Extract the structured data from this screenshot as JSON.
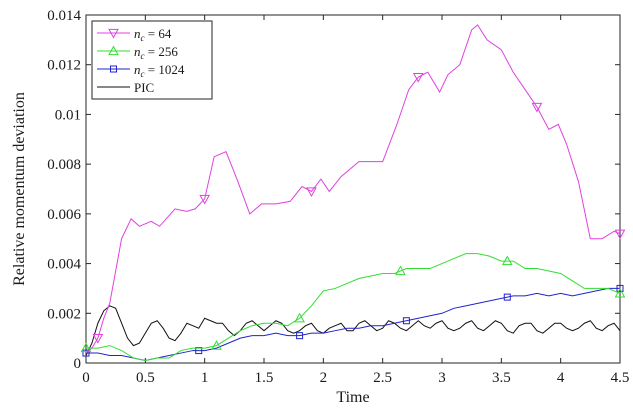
{
  "chart_data": {
    "type": "line",
    "title": "",
    "xlabel": "Time",
    "ylabel": "Relative momentum deviation",
    "xlim": [
      0,
      4.5
    ],
    "ylim": [
      0,
      0.014
    ],
    "grid": false,
    "legend_placement": "top-left",
    "x_ticks": [
      0,
      0.5,
      1,
      1.5,
      2,
      2.5,
      3,
      3.5,
      4,
      4.5
    ],
    "x_tick_labels": [
      "0",
      "0.5",
      "1",
      "1.5",
      "2",
      "2.5",
      "3",
      "3.5",
      "4",
      "4.5"
    ],
    "y_ticks": [
      0,
      0.002,
      0.004,
      0.006,
      0.008,
      0.01,
      0.012,
      0.014
    ],
    "y_tick_labels": [
      "0",
      "0.002",
      "0.004",
      "0.006",
      "0.008",
      "0.01",
      "0.012",
      "0.014"
    ],
    "series": [
      {
        "name": "n_c = 64",
        "legend_label": "n_c = 64",
        "legend_base": "n",
        "legend_sub": "c",
        "legend_rest": " = 64",
        "color": "#e040e0",
        "marker": "triangle-down",
        "marker_x": [
          0.1,
          1.0,
          1.9,
          2.8,
          3.8,
          4.5
        ],
        "points": [
          [
            0.0,
            0.0004
          ],
          [
            0.05,
            0.0006
          ],
          [
            0.1,
            0.001
          ],
          [
            0.15,
            0.0018
          ],
          [
            0.2,
            0.0024
          ],
          [
            0.3,
            0.005
          ],
          [
            0.38,
            0.0058
          ],
          [
            0.45,
            0.0055
          ],
          [
            0.55,
            0.0057
          ],
          [
            0.62,
            0.0055
          ],
          [
            0.75,
            0.0062
          ],
          [
            0.85,
            0.0061
          ],
          [
            0.92,
            0.0062
          ],
          [
            1.0,
            0.0066
          ],
          [
            1.08,
            0.0083
          ],
          [
            1.18,
            0.0085
          ],
          [
            1.28,
            0.0073
          ],
          [
            1.38,
            0.006
          ],
          [
            1.48,
            0.0064
          ],
          [
            1.6,
            0.0064
          ],
          [
            1.72,
            0.0065
          ],
          [
            1.82,
            0.0071
          ],
          [
            1.9,
            0.0069
          ],
          [
            1.98,
            0.0074
          ],
          [
            2.05,
            0.0069
          ],
          [
            2.15,
            0.0075
          ],
          [
            2.3,
            0.0081
          ],
          [
            2.5,
            0.0081
          ],
          [
            2.62,
            0.0096
          ],
          [
            2.72,
            0.011
          ],
          [
            2.8,
            0.0115
          ],
          [
            2.88,
            0.0117
          ],
          [
            2.98,
            0.0109
          ],
          [
            3.05,
            0.0116
          ],
          [
            3.15,
            0.012
          ],
          [
            3.25,
            0.0134
          ],
          [
            3.3,
            0.0136
          ],
          [
            3.38,
            0.013
          ],
          [
            3.5,
            0.0126
          ],
          [
            3.6,
            0.0117
          ],
          [
            3.7,
            0.011
          ],
          [
            3.8,
            0.0103
          ],
          [
            3.9,
            0.0094
          ],
          [
            3.98,
            0.0096
          ],
          [
            4.05,
            0.0088
          ],
          [
            4.15,
            0.0073
          ],
          [
            4.25,
            0.005
          ],
          [
            4.35,
            0.005
          ],
          [
            4.45,
            0.0053
          ],
          [
            4.5,
            0.0052
          ]
        ]
      },
      {
        "name": "n_c = 256",
        "legend_label": "n_c = 256",
        "legend_base": "n",
        "legend_sub": "c",
        "legend_rest": " = 256",
        "color": "#33dd33",
        "marker": "triangle-up",
        "marker_x": [
          0.0,
          1.1,
          1.8,
          2.65,
          3.55,
          4.5
        ],
        "points": [
          [
            0.0,
            0.0006
          ],
          [
            0.1,
            0.0006
          ],
          [
            0.2,
            0.0007
          ],
          [
            0.3,
            0.0005
          ],
          [
            0.4,
            0.0002
          ],
          [
            0.5,
            0.0001
          ],
          [
            0.6,
            0.0002
          ],
          [
            0.7,
            0.0002
          ],
          [
            0.8,
            0.0005
          ],
          [
            0.9,
            0.0006
          ],
          [
            1.0,
            0.0006
          ],
          [
            1.1,
            0.0007
          ],
          [
            1.2,
            0.001
          ],
          [
            1.3,
            0.0013
          ],
          [
            1.4,
            0.0015
          ],
          [
            1.5,
            0.0016
          ],
          [
            1.6,
            0.0016
          ],
          [
            1.7,
            0.0015
          ],
          [
            1.8,
            0.0018
          ],
          [
            1.9,
            0.0023
          ],
          [
            2.0,
            0.0029
          ],
          [
            2.1,
            0.003
          ],
          [
            2.2,
            0.0032
          ],
          [
            2.3,
            0.0034
          ],
          [
            2.4,
            0.0035
          ],
          [
            2.5,
            0.0036
          ],
          [
            2.6,
            0.0036
          ],
          [
            2.7,
            0.0038
          ],
          [
            2.8,
            0.0038
          ],
          [
            2.9,
            0.0038
          ],
          [
            3.0,
            0.004
          ],
          [
            3.1,
            0.0042
          ],
          [
            3.2,
            0.0044
          ],
          [
            3.3,
            0.0044
          ],
          [
            3.4,
            0.0043
          ],
          [
            3.5,
            0.0041
          ],
          [
            3.6,
            0.0041
          ],
          [
            3.7,
            0.0038
          ],
          [
            3.8,
            0.0038
          ],
          [
            3.9,
            0.0037
          ],
          [
            4.0,
            0.0036
          ],
          [
            4.1,
            0.0033
          ],
          [
            4.2,
            0.003
          ],
          [
            4.3,
            0.003
          ],
          [
            4.4,
            0.003
          ],
          [
            4.5,
            0.0028
          ]
        ]
      },
      {
        "name": "n_c = 1024",
        "legend_label": "n_c = 1024",
        "legend_base": "n",
        "legend_sub": "c",
        "legend_rest": " = 1024",
        "color": "#2222cc",
        "marker": "square",
        "marker_x": [
          0.0,
          0.95,
          1.8,
          2.7,
          3.55,
          4.5
        ],
        "points": [
          [
            0.0,
            0.0004
          ],
          [
            0.1,
            0.0004
          ],
          [
            0.2,
            0.0003
          ],
          [
            0.3,
            0.0003
          ],
          [
            0.4,
            0.0002
          ],
          [
            0.5,
            0.0001
          ],
          [
            0.6,
            0.0002
          ],
          [
            0.7,
            0.0003
          ],
          [
            0.8,
            0.0004
          ],
          [
            0.9,
            0.0005
          ],
          [
            1.0,
            0.0005
          ],
          [
            1.1,
            0.0006
          ],
          [
            1.2,
            0.0008
          ],
          [
            1.3,
            0.001
          ],
          [
            1.4,
            0.0011
          ],
          [
            1.5,
            0.0011
          ],
          [
            1.6,
            0.0012
          ],
          [
            1.7,
            0.0011
          ],
          [
            1.8,
            0.0011
          ],
          [
            1.9,
            0.0012
          ],
          [
            2.0,
            0.0012
          ],
          [
            2.1,
            0.0013
          ],
          [
            2.2,
            0.0014
          ],
          [
            2.3,
            0.0014
          ],
          [
            2.4,
            0.0015
          ],
          [
            2.5,
            0.0015
          ],
          [
            2.6,
            0.0016
          ],
          [
            2.7,
            0.0017
          ],
          [
            2.8,
            0.0018
          ],
          [
            2.9,
            0.0019
          ],
          [
            3.0,
            0.002
          ],
          [
            3.1,
            0.0022
          ],
          [
            3.2,
            0.0023
          ],
          [
            3.3,
            0.0024
          ],
          [
            3.4,
            0.0025
          ],
          [
            3.5,
            0.0026
          ],
          [
            3.6,
            0.0027
          ],
          [
            3.7,
            0.0027
          ],
          [
            3.8,
            0.0028
          ],
          [
            3.9,
            0.0027
          ],
          [
            4.0,
            0.0028
          ],
          [
            4.1,
            0.0027
          ],
          [
            4.2,
            0.0028
          ],
          [
            4.3,
            0.0029
          ],
          [
            4.4,
            0.003
          ],
          [
            4.5,
            0.003
          ]
        ]
      },
      {
        "name": "PIC",
        "legend_label": "PIC",
        "legend_base": "PIC",
        "legend_sub": "",
        "legend_rest": "",
        "color": "#111111",
        "marker": "none",
        "marker_x": [],
        "points": [
          [
            0.0,
            0.0003
          ],
          [
            0.05,
            0.0008
          ],
          [
            0.1,
            0.0016
          ],
          [
            0.15,
            0.0021
          ],
          [
            0.2,
            0.0023
          ],
          [
            0.25,
            0.0022
          ],
          [
            0.3,
            0.0016
          ],
          [
            0.35,
            0.001
          ],
          [
            0.4,
            0.0007
          ],
          [
            0.45,
            0.0008
          ],
          [
            0.5,
            0.0012
          ],
          [
            0.55,
            0.0016
          ],
          [
            0.6,
            0.0017
          ],
          [
            0.65,
            0.0014
          ],
          [
            0.7,
            0.001
          ],
          [
            0.75,
            0.0009
          ],
          [
            0.8,
            0.0012
          ],
          [
            0.85,
            0.0016
          ],
          [
            0.9,
            0.0015
          ],
          [
            0.95,
            0.0014
          ],
          [
            1.0,
            0.0018
          ],
          [
            1.05,
            0.0017
          ],
          [
            1.1,
            0.0016
          ],
          [
            1.15,
            0.0016
          ],
          [
            1.2,
            0.0013
          ],
          [
            1.25,
            0.0011
          ],
          [
            1.3,
            0.0013
          ],
          [
            1.35,
            0.0016
          ],
          [
            1.4,
            0.0017
          ],
          [
            1.45,
            0.0015
          ],
          [
            1.5,
            0.0013
          ],
          [
            1.55,
            0.0015
          ],
          [
            1.6,
            0.0017
          ],
          [
            1.65,
            0.0016
          ],
          [
            1.7,
            0.0013
          ],
          [
            1.75,
            0.0012
          ],
          [
            1.8,
            0.0013
          ],
          [
            1.85,
            0.0015
          ],
          [
            1.9,
            0.0016
          ],
          [
            1.95,
            0.0013
          ],
          [
            2.0,
            0.0012
          ],
          [
            2.05,
            0.0014
          ],
          [
            2.1,
            0.0015
          ],
          [
            2.15,
            0.0016
          ],
          [
            2.2,
            0.0013
          ],
          [
            2.25,
            0.0013
          ],
          [
            2.3,
            0.0016
          ],
          [
            2.35,
            0.0017
          ],
          [
            2.4,
            0.0015
          ],
          [
            2.45,
            0.0013
          ],
          [
            2.5,
            0.0014
          ],
          [
            2.55,
            0.0017
          ],
          [
            2.6,
            0.0016
          ],
          [
            2.65,
            0.0014
          ],
          [
            2.7,
            0.0013
          ],
          [
            2.75,
            0.0015
          ],
          [
            2.8,
            0.0017
          ],
          [
            2.85,
            0.0015
          ],
          [
            2.9,
            0.0014
          ],
          [
            2.95,
            0.0016
          ],
          [
            3.0,
            0.0017
          ],
          [
            3.05,
            0.0014
          ],
          [
            3.1,
            0.0013
          ],
          [
            3.15,
            0.0014
          ],
          [
            3.2,
            0.0016
          ],
          [
            3.25,
            0.0017
          ],
          [
            3.3,
            0.0014
          ],
          [
            3.35,
            0.0013
          ],
          [
            3.4,
            0.0015
          ],
          [
            3.45,
            0.0017
          ],
          [
            3.5,
            0.0016
          ],
          [
            3.55,
            0.0013
          ],
          [
            3.6,
            0.0012
          ],
          [
            3.65,
            0.0015
          ],
          [
            3.7,
            0.0016
          ],
          [
            3.75,
            0.0016
          ],
          [
            3.8,
            0.0013
          ],
          [
            3.85,
            0.0012
          ],
          [
            3.9,
            0.0014
          ],
          [
            3.95,
            0.0016
          ],
          [
            4.0,
            0.0016
          ],
          [
            4.05,
            0.0014
          ],
          [
            4.1,
            0.0013
          ],
          [
            4.15,
            0.0014
          ],
          [
            4.2,
            0.0016
          ],
          [
            4.25,
            0.0017
          ],
          [
            4.3,
            0.0014
          ],
          [
            4.35,
            0.0013
          ],
          [
            4.4,
            0.0015
          ],
          [
            4.45,
            0.0016
          ],
          [
            4.5,
            0.0013
          ]
        ]
      }
    ]
  }
}
